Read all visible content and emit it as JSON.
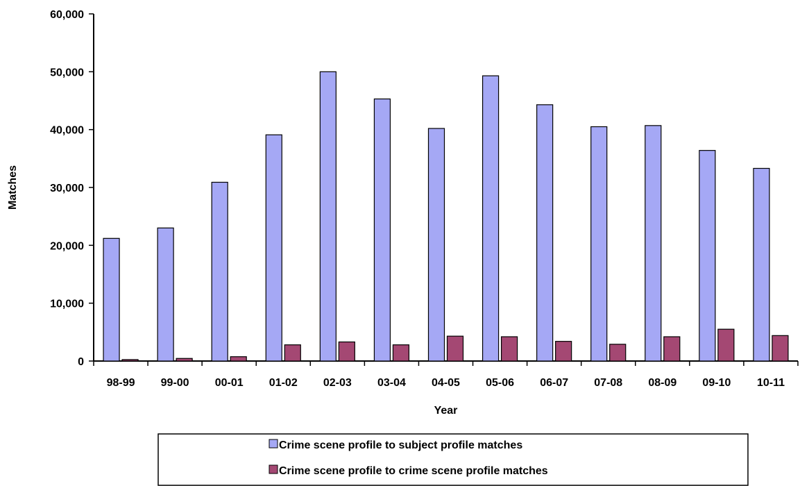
{
  "chart_data": {
    "type": "bar",
    "title": "",
    "xlabel": "Year",
    "ylabel": "Matches",
    "ylim": [
      0,
      60000
    ],
    "yticks": [
      0,
      10000,
      20000,
      30000,
      40000,
      50000,
      60000
    ],
    "ytick_labels": [
      "0",
      "10,000",
      "20,000",
      "30,000",
      "40,000",
      "50,000",
      "60,000"
    ],
    "categories": [
      "98-99",
      "99-00",
      "00-01",
      "01-02",
      "02-03",
      "03-04",
      "04-05",
      "05-06",
      "06-07",
      "07-08",
      "08-09",
      "09-10",
      "10-11"
    ],
    "series": [
      {
        "name": "Crime scene profile to subject profile matches",
        "color": "#a5a8f5",
        "values": [
          21200,
          23000,
          30900,
          39100,
          50000,
          45300,
          40200,
          49300,
          44300,
          40500,
          40700,
          36400,
          33300
        ]
      },
      {
        "name": "Crime scene profile to crime scene profile matches",
        "color": "#a44873",
        "values": [
          250,
          450,
          750,
          2800,
          3300,
          2800,
          4300,
          4200,
          3400,
          2900,
          4200,
          5500,
          4400
        ]
      }
    ],
    "grid": false,
    "legend_position": "bottom"
  }
}
